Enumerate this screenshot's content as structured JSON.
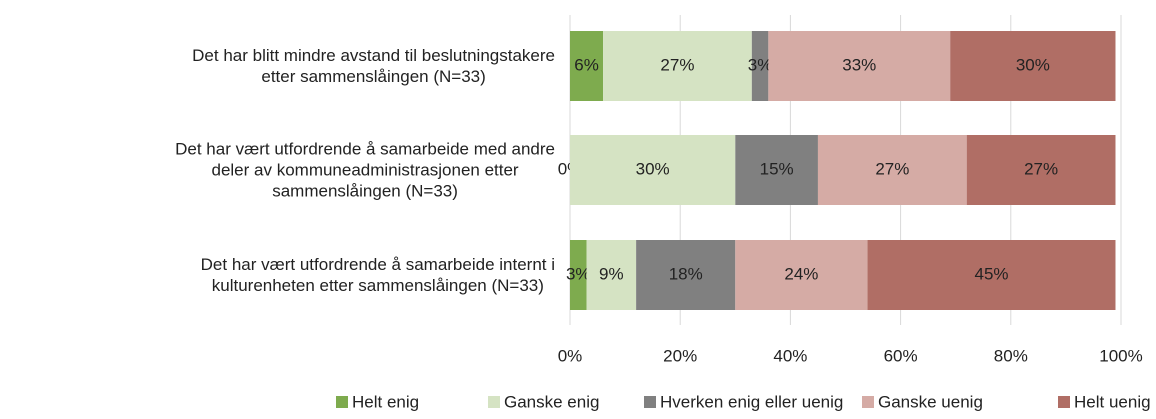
{
  "chart_data": {
    "type": "stacked_barh",
    "categories": [
      "Det har blitt mindre avstand til beslutningstakere\netter sammenslåingen (N=33)",
      "Det har vært utfordrende å samarbeide med andre\ndeler av kommuneadministrasjonen etter\nsammenslåingen (N=33)",
      "Det har vært utfordrende å samarbeide internt i\nkulturenheten etter sammenslåingen (N=33)"
    ],
    "series": [
      {
        "name": "Helt enig",
        "color": "#7eab4e",
        "values": [
          6,
          0,
          3
        ],
        "value_labels": [
          "6%",
          "0%",
          "3%"
        ]
      },
      {
        "name": "Ganske enig",
        "color": "#d5e3c3",
        "values": [
          27,
          30,
          9
        ],
        "value_labels": [
          "27%",
          "30%",
          "9%"
        ]
      },
      {
        "name": "Hverken enig eller uenig",
        "color": "#808080",
        "values": [
          3,
          15,
          18
        ],
        "value_labels": [
          "3%",
          "15%",
          "18%"
        ]
      },
      {
        "name": "Ganske uenig",
        "color": "#d5aba5",
        "values": [
          33,
          27,
          24
        ],
        "value_labels": [
          "33%",
          "27%",
          "24%"
        ]
      },
      {
        "name": "Helt uenig",
        "color": "#b06e65",
        "values": [
          30,
          27,
          45
        ],
        "value_labels": [
          "30%",
          "27%",
          "45%"
        ]
      }
    ],
    "xlim": [
      0,
      100
    ],
    "xticks": [
      {
        "value": 0,
        "label": "0%"
      },
      {
        "value": 20,
        "label": "20%"
      },
      {
        "value": 40,
        "label": "40%"
      },
      {
        "value": 60,
        "label": "60%"
      },
      {
        "value": 80,
        "label": "80%"
      },
      {
        "value": 100,
        "label": "100%"
      }
    ],
    "grid": true,
    "legend": "bottom"
  }
}
